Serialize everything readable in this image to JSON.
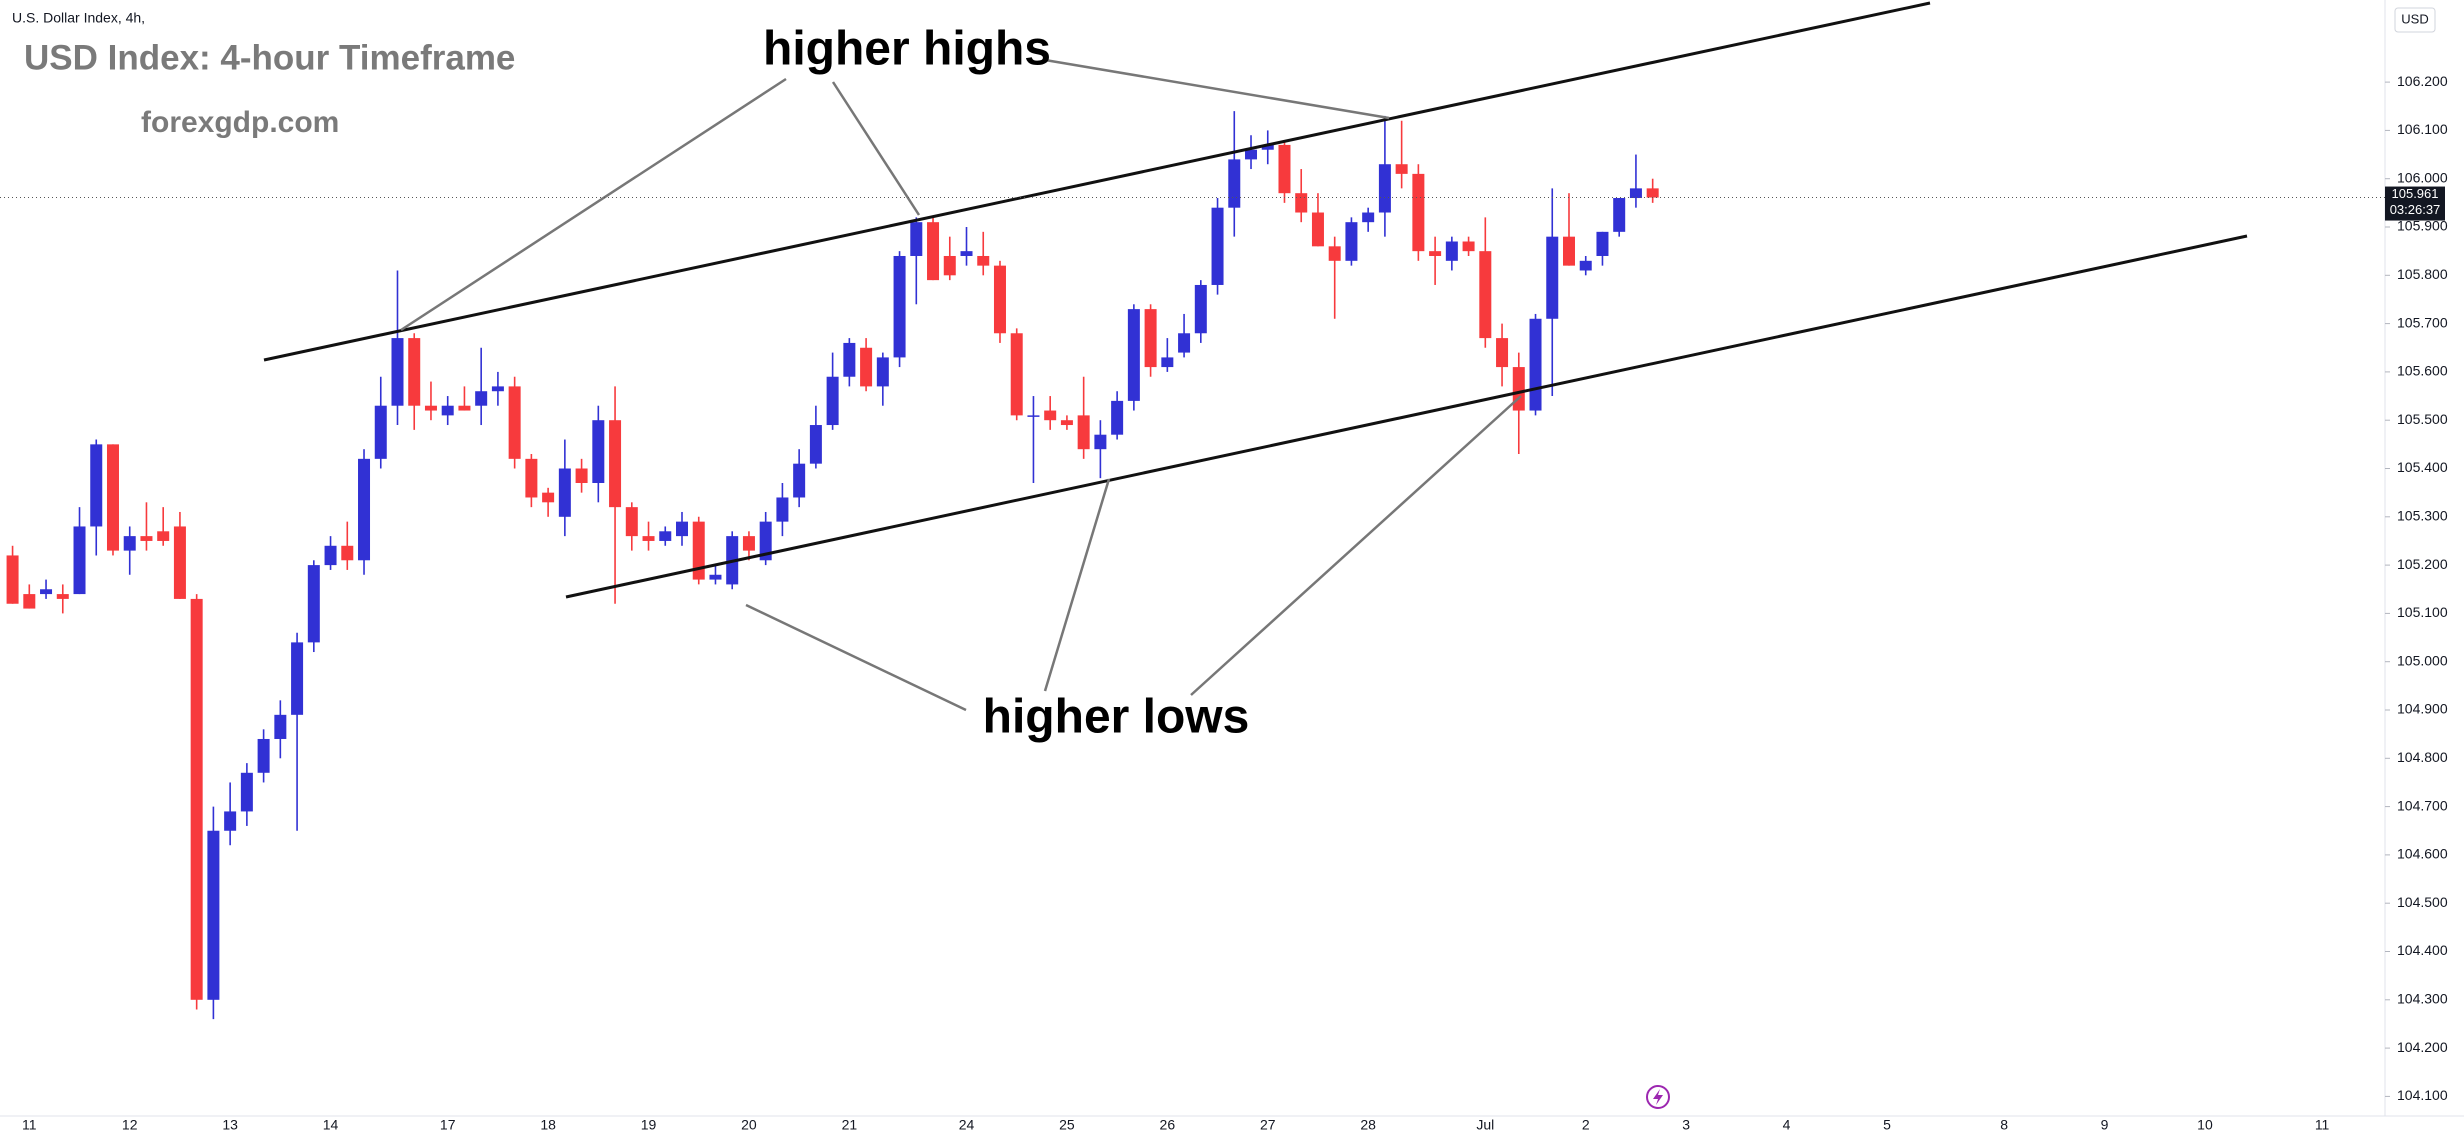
{
  "header": "U.S. Dollar Index, 4h,",
  "currency": "USD",
  "chart_data": {
    "type": "candlestick",
    "title": "USD Index: 4-hour Timeframe",
    "subtitle": "forexgdp.com",
    "annotations": [
      "higher highs",
      "higher lows"
    ],
    "up_color": "#3131d4",
    "down_color": "#f73a3d",
    "ylim": [
      104.06,
      106.37
    ],
    "yticks": [
      {
        "value": 104.1,
        "label": "104.100"
      },
      {
        "value": 104.2,
        "label": "104.200"
      },
      {
        "value": 104.3,
        "label": "104.300"
      },
      {
        "value": 104.4,
        "label": "104.400"
      },
      {
        "value": 104.5,
        "label": "104.500"
      },
      {
        "value": 104.6,
        "label": "104.600"
      },
      {
        "value": 104.7,
        "label": "104.700"
      },
      {
        "value": 104.8,
        "label": "104.800"
      },
      {
        "value": 104.9,
        "label": "104.900"
      },
      {
        "value": 105.0,
        "label": "105.000"
      },
      {
        "value": 105.1,
        "label": "105.100"
      },
      {
        "value": 105.2,
        "label": "105.200"
      },
      {
        "value": 105.3,
        "label": "105.300"
      },
      {
        "value": 105.4,
        "label": "105.400"
      },
      {
        "value": 105.5,
        "label": "105.500"
      },
      {
        "value": 105.6,
        "label": "105.600"
      },
      {
        "value": 105.7,
        "label": "105.700"
      },
      {
        "value": 105.8,
        "label": "105.800"
      },
      {
        "value": 105.9,
        "label": "105.900"
      },
      {
        "value": 106.0,
        "label": "106.000"
      },
      {
        "value": 106.1,
        "label": "106.100"
      },
      {
        "value": 106.2,
        "label": "106.200"
      }
    ],
    "grid": false,
    "last_price": 105.961,
    "countdown": "03:26:37",
    "categories": [
      null,
      "11",
      null,
      null,
      null,
      null,
      null,
      "12",
      null,
      null,
      null,
      null,
      null,
      "13",
      null,
      null,
      null,
      null,
      null,
      "14",
      null,
      null,
      null,
      null,
      null,
      null,
      "17",
      null,
      null,
      null,
      null,
      null,
      "18",
      null,
      null,
      null,
      null,
      null,
      "19",
      null,
      null,
      null,
      null,
      null,
      "20",
      null,
      null,
      null,
      null,
      null,
      "21",
      null,
      null,
      null,
      null,
      null,
      null,
      "24",
      null,
      null,
      null,
      null,
      null,
      "25",
      null,
      null,
      null,
      null,
      null,
      "26",
      null,
      null,
      null,
      null,
      null,
      "27",
      null,
      null,
      null,
      null,
      null,
      "28",
      null,
      null,
      null,
      null,
      null,
      null,
      "Jul",
      null,
      null,
      null,
      null,
      null,
      "2",
      null,
      null,
      null,
      null,
      null,
      "3",
      null,
      null,
      null,
      null,
      null,
      "4",
      null,
      null,
      null,
      null,
      null,
      "5",
      null,
      null,
      null,
      null,
      null,
      null,
      "8",
      null,
      null,
      null,
      null,
      null,
      "9",
      null,
      null,
      null,
      null,
      null,
      "10",
      null,
      null,
      null,
      null,
      null,
      null,
      "11",
      null,
      null,
      null
    ],
    "open": [
      105.22,
      105.14,
      105.14,
      105.14,
      105.14,
      105.28,
      105.45,
      105.23,
      105.26,
      105.27,
      105.28,
      105.13,
      104.3,
      104.65,
      104.69,
      104.77,
      104.84,
      104.89,
      105.04,
      105.2,
      105.24,
      105.21,
      105.42,
      105.53,
      105.67,
      105.53,
      105.51,
      105.53,
      105.53,
      105.56,
      105.57,
      105.42,
      105.35,
      105.3,
      105.4,
      105.37,
      105.5,
      105.32,
      105.26,
      105.25,
      105.26,
      105.29,
      105.17,
      105.16,
      105.26,
      105.21,
      105.29,
      105.34,
      105.41,
      105.49,
      105.59,
      105.65,
      105.57,
      105.63,
      105.84,
      105.91,
      105.84,
      105.84,
      105.84,
      105.82,
      105.68,
      105.51,
      105.52,
      105.5,
      105.51,
      105.44,
      105.47,
      105.54,
      105.73,
      105.61,
      105.64,
      105.68,
      105.78,
      105.94,
      106.04,
      106.06,
      106.07,
      105.97,
      105.93,
      105.86,
      105.83,
      105.91,
      105.93,
      106.03,
      106.01,
      105.85,
      105.83,
      105.87,
      105.85,
      105.67,
      105.61,
      105.52,
      105.71,
      105.88,
      105.81,
      105.84,
      105.89,
      105.96,
      105.98,
      null,
      null,
      null,
      null,
      null,
      null,
      null,
      null,
      null,
      null,
      null,
      null,
      null,
      null,
      null,
      null,
      null,
      null,
      null,
      null,
      null,
      null,
      null,
      null,
      null,
      null,
      null,
      null,
      null,
      null,
      null,
      null,
      null,
      null,
      null,
      null,
      null,
      null,
      null,
      null,
      null,
      null,
      null
    ],
    "high": [
      105.24,
      105.16,
      105.17,
      105.16,
      105.32,
      105.46,
      105.45,
      105.28,
      105.33,
      105.32,
      105.31,
      105.14,
      104.7,
      104.75,
      104.79,
      104.86,
      104.92,
      105.06,
      105.21,
      105.26,
      105.29,
      105.44,
      105.59,
      105.81,
      105.68,
      105.58,
      105.55,
      105.57,
      105.65,
      105.6,
      105.59,
      105.43,
      105.36,
      105.46,
      105.42,
      105.53,
      105.57,
      105.33,
      105.29,
      105.28,
      105.31,
      105.3,
      105.2,
      105.27,
      105.27,
      105.31,
      105.37,
      105.44,
      105.53,
      105.64,
      105.67,
      105.67,
      105.64,
      105.85,
      105.92,
      105.92,
      105.88,
      105.9,
      105.89,
      105.83,
      105.69,
      105.55,
      105.55,
      105.51,
      105.59,
      105.5,
      105.56,
      105.74,
      105.74,
      105.67,
      105.72,
      105.79,
      105.96,
      106.14,
      106.09,
      106.1,
      106.08,
      106.02,
      105.97,
      105.88,
      105.92,
      105.94,
      106.13,
      106.12,
      106.03,
      105.88,
      105.88,
      105.88,
      105.92,
      105.7,
      105.64,
      105.72,
      105.98,
      105.97,
      105.84,
      105.89,
      105.96,
      106.05,
      106.0,
      null,
      null,
      null,
      null,
      null,
      null,
      null,
      null,
      null,
      null,
      null,
      null,
      null,
      null,
      null,
      null,
      null,
      null,
      null,
      null,
      null,
      null,
      null,
      null,
      null,
      null,
      null,
      null,
      null,
      null,
      null,
      null,
      null,
      null,
      null,
      null,
      null,
      null,
      null,
      null,
      null,
      null,
      null
    ],
    "low": [
      105.12,
      105.11,
      105.13,
      105.1,
      105.14,
      105.22,
      105.22,
      105.18,
      105.23,
      105.24,
      105.13,
      104.28,
      104.26,
      104.62,
      104.66,
      104.75,
      104.8,
      104.65,
      105.02,
      105.19,
      105.19,
      105.18,
      105.4,
      105.49,
      105.48,
      105.5,
      105.49,
      105.52,
      105.49,
      105.53,
      105.4,
      105.32,
      105.3,
      105.26,
      105.35,
      105.33,
      105.12,
      105.23,
      105.23,
      105.24,
      105.24,
      105.16,
      105.16,
      105.15,
      105.21,
      105.2,
      105.26,
      105.32,
      105.4,
      105.48,
      105.57,
      105.56,
      105.53,
      105.61,
      105.74,
      105.79,
      105.79,
      105.82,
      105.8,
      105.66,
      105.5,
      105.37,
      105.48,
      105.48,
      105.42,
      105.38,
      105.46,
      105.52,
      105.59,
      105.6,
      105.63,
      105.66,
      105.76,
      105.88,
      106.02,
      106.03,
      105.95,
      105.91,
      105.86,
      105.71,
      105.82,
      105.89,
      105.88,
      105.98,
      105.83,
      105.78,
      105.81,
      105.84,
      105.65,
      105.57,
      105.43,
      105.51,
      105.55,
      105.82,
      105.8,
      105.82,
      105.88,
      105.94,
      105.95,
      null,
      null,
      null,
      null,
      null,
      null,
      null,
      null,
      null,
      null,
      null,
      null,
      null,
      null,
      null,
      null,
      null,
      null,
      null,
      null,
      null,
      null,
      null,
      null,
      null,
      null,
      null,
      null,
      null,
      null,
      null,
      null,
      null,
      null,
      null,
      null,
      null,
      null,
      null,
      null,
      null,
      null,
      null
    ],
    "close": [
      105.12,
      105.11,
      105.15,
      105.13,
      105.28,
      105.45,
      105.23,
      105.26,
      105.25,
      105.25,
      105.13,
      104.3,
      104.65,
      104.69,
      104.77,
      104.84,
      104.89,
      105.04,
      105.2,
      105.24,
      105.21,
      105.42,
      105.53,
      105.67,
      105.53,
      105.52,
      105.53,
      105.52,
      105.56,
      105.57,
      105.42,
      105.34,
      105.33,
      105.4,
      105.37,
      105.5,
      105.32,
      105.26,
      105.25,
      105.27,
      105.29,
      105.17,
      105.18,
      105.26,
      105.23,
      105.29,
      105.34,
      105.41,
      105.49,
      105.59,
      105.66,
      105.57,
      105.63,
      105.84,
      105.91,
      105.79,
      105.8,
      105.85,
      105.82,
      105.68,
      105.51,
      105.51,
      105.5,
      105.49,
      105.44,
      105.47,
      105.54,
      105.73,
      105.61,
      105.63,
      105.68,
      105.78,
      105.94,
      106.04,
      106.06,
      106.07,
      105.97,
      105.93,
      105.86,
      105.83,
      105.91,
      105.93,
      106.03,
      106.01,
      105.85,
      105.84,
      105.87,
      105.85,
      105.67,
      105.61,
      105.52,
      105.71,
      105.88,
      105.82,
      105.83,
      105.89,
      105.96,
      105.98,
      105.961,
      null,
      null,
      null,
      null,
      null,
      null,
      null,
      null,
      null,
      null,
      null,
      null,
      null,
      null,
      null,
      null,
      null,
      null,
      null,
      null,
      null,
      null,
      null,
      null,
      null,
      null,
      null,
      null,
      null,
      null,
      null,
      null,
      null,
      null,
      null,
      null,
      null,
      null,
      null,
      null,
      null,
      null,
      null
    ]
  }
}
